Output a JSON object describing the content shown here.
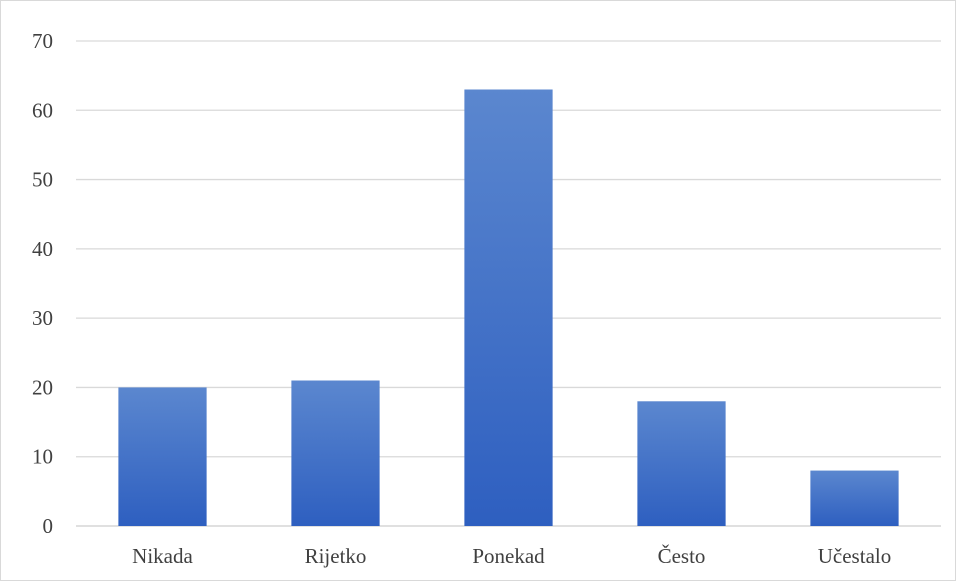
{
  "chart_data": {
    "type": "bar",
    "categories": [
      "Nikada",
      "Rijetko",
      "Ponekad",
      "Često",
      "Učestalo"
    ],
    "values": [
      20,
      21,
      63,
      18,
      8
    ],
    "title": "",
    "xlabel": "",
    "ylabel": "",
    "ylim": [
      0,
      70
    ],
    "yticks": [
      "0",
      "10",
      "20",
      "30",
      "40",
      "50",
      "60",
      "70"
    ],
    "grid": true,
    "legend": "none",
    "bar_color_top": "#5b87cf",
    "bar_color_bottom": "#2e5fc0",
    "gridline_color": "#d9d9d9"
  }
}
